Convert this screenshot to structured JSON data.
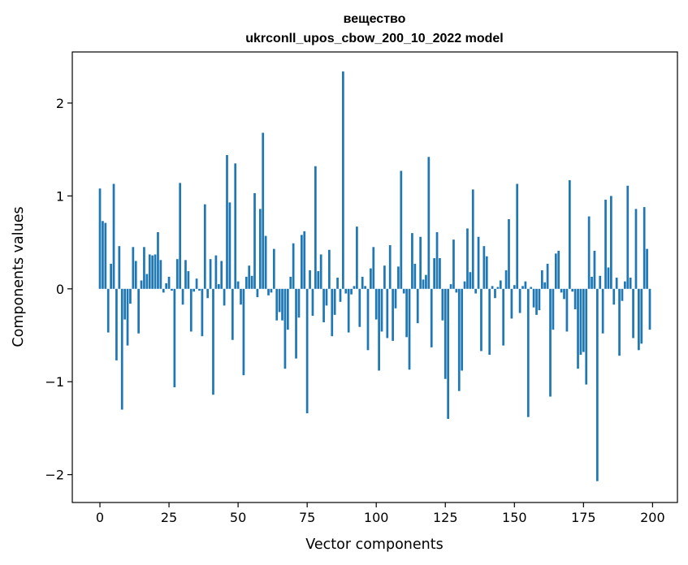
{
  "chart_data": {
    "type": "bar",
    "title_line1": "вещество",
    "title_line2": "ukrconll_upos_cbow_200_10_2022 model",
    "xlabel": "Vector components",
    "ylabel": "Components values",
    "xlim": [
      -10,
      209
    ],
    "ylim": [
      -2.3,
      2.55
    ],
    "xticks": [
      0,
      25,
      50,
      75,
      100,
      125,
      150,
      175,
      200
    ],
    "yticks": [
      -2,
      -1,
      0,
      1,
      2
    ],
    "ytick_labels": [
      "−2",
      "−1",
      "0",
      "1",
      "2"
    ],
    "bar_color": "#1f77b4",
    "grid": false,
    "x": [
      0,
      1,
      2,
      3,
      4,
      5,
      6,
      7,
      8,
      9,
      10,
      11,
      12,
      13,
      14,
      15,
      16,
      17,
      18,
      19,
      20,
      21,
      22,
      23,
      24,
      25,
      26,
      27,
      28,
      29,
      30,
      31,
      32,
      33,
      34,
      35,
      36,
      37,
      38,
      39,
      40,
      41,
      42,
      43,
      44,
      45,
      46,
      47,
      48,
      49,
      50,
      51,
      52,
      53,
      54,
      55,
      56,
      57,
      58,
      59,
      60,
      61,
      62,
      63,
      64,
      65,
      66,
      67,
      68,
      69,
      70,
      71,
      72,
      73,
      74,
      75,
      76,
      77,
      78,
      79,
      80,
      81,
      82,
      83,
      84,
      85,
      86,
      87,
      88,
      89,
      90,
      91,
      92,
      93,
      94,
      95,
      96,
      97,
      98,
      99,
      100,
      101,
      102,
      103,
      104,
      105,
      106,
      107,
      108,
      109,
      110,
      111,
      112,
      113,
      114,
      115,
      116,
      117,
      118,
      119,
      120,
      121,
      122,
      123,
      124,
      125,
      126,
      127,
      128,
      129,
      130,
      131,
      132,
      133,
      134,
      135,
      136,
      137,
      138,
      139,
      140,
      141,
      142,
      143,
      144,
      145,
      146,
      147,
      148,
      149,
      150,
      151,
      152,
      153,
      154,
      155,
      156,
      157,
      158,
      159,
      160,
      161,
      162,
      163,
      164,
      165,
      166,
      167,
      168,
      169,
      170,
      171,
      172,
      173,
      174,
      175,
      176,
      177,
      178,
      179,
      180,
      181,
      182,
      183,
      184,
      185,
      186,
      187,
      188,
      189,
      190,
      191,
      192,
      193,
      194,
      195,
      196,
      197,
      198,
      199
    ],
    "values": [
      1.08,
      0.73,
      0.71,
      -0.47,
      0.27,
      1.13,
      -0.77,
      0.46,
      -1.3,
      -0.33,
      -0.61,
      -0.16,
      0.45,
      0.3,
      -0.48,
      0.09,
      0.45,
      0.16,
      0.37,
      0.36,
      0.37,
      0.61,
      0.31,
      -0.04,
      0.06,
      0.13,
      -0.02,
      -1.06,
      0.32,
      1.14,
      -0.17,
      0.31,
      0.19,
      -0.46,
      -0.03,
      0.11,
      -0.02,
      -0.51,
      0.91,
      -0.1,
      0.32,
      -1.14,
      0.36,
      0.05,
      0.3,
      -0.18,
      1.44,
      0.93,
      -0.55,
      1.35,
      0.08,
      -0.17,
      -0.93,
      0.13,
      0.25,
      0.14,
      1.03,
      -0.09,
      0.86,
      1.68,
      0.57,
      -0.07,
      -0.04,
      0.43,
      -0.34,
      -0.25,
      -0.34,
      -0.86,
      -0.44,
      0.13,
      0.49,
      -0.75,
      -0.31,
      0.58,
      0.62,
      -1.34,
      0.2,
      -0.29,
      1.32,
      0.19,
      0.37,
      -0.36,
      -0.18,
      0.42,
      -0.51,
      -0.28,
      0.12,
      -0.14,
      2.34,
      -0.05,
      -0.47,
      -0.06,
      0.03,
      0.67,
      -0.41,
      0.13,
      0.03,
      -0.66,
      0.22,
      0.45,
      -0.33,
      -0.88,
      -0.46,
      0.25,
      -0.53,
      0.47,
      -0.56,
      -0.21,
      0.24,
      1.27,
      -0.05,
      -0.52,
      -0.87,
      0.6,
      0.27,
      -0.37,
      0.56,
      0.1,
      0.15,
      1.42,
      -0.63,
      0.33,
      0.61,
      0.33,
      -0.34,
      -0.97,
      -1.4,
      0.05,
      0.53,
      -0.04,
      -1.1,
      -0.88,
      0.08,
      0.65,
      0.18,
      1.07,
      -0.05,
      0.56,
      -0.67,
      0.46,
      0.35,
      -0.71,
      0.03,
      -0.1,
      0.02,
      0.09,
      -0.61,
      0.2,
      0.75,
      -0.32,
      0.04,
      1.13,
      -0.26,
      0.03,
      0.08,
      -1.38,
      0.02,
      -0.2,
      -0.28,
      -0.23,
      0.2,
      0.07,
      0.27,
      -1.16,
      -0.44,
      0.38,
      0.41,
      -0.04,
      -0.11,
      -0.46,
      1.17,
      -0.03,
      -0.22,
      -0.86,
      -0.71,
      -0.68,
      -1.03,
      0.78,
      0.13,
      0.41,
      -2.07,
      0.14,
      -0.48,
      0.96,
      0.23,
      1.0,
      -0.17,
      0.12,
      -0.72,
      -0.13,
      0.08,
      1.11,
      0.12,
      -0.53,
      0.86,
      -0.66,
      -0.59,
      0.88,
      0.43,
      -0.44
    ]
  }
}
